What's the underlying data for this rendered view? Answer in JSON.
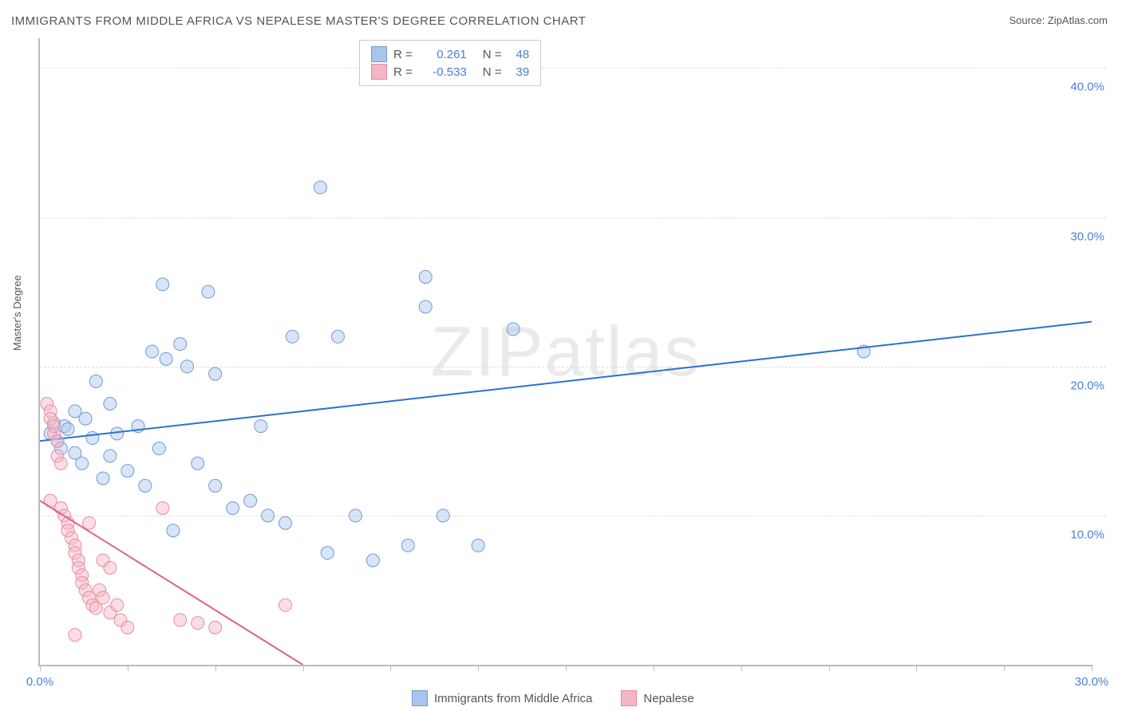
{
  "title": "IMMIGRANTS FROM MIDDLE AFRICA VS NEPALESE MASTER'S DEGREE CORRELATION CHART",
  "source_label": "Source: ",
  "source_name": "ZipAtlas.com",
  "y_axis_title": "Master's Degree",
  "watermark": "ZIPatlas",
  "chart": {
    "type": "scatter",
    "background_color": "#ffffff",
    "grid_color": "#dddddd",
    "axis_color": "#bbbbbb",
    "tick_label_color": "#4a7fd8",
    "xlim": [
      0,
      30
    ],
    "ylim": [
      0,
      42
    ],
    "x_ticks": [
      0,
      2.5,
      5,
      7.5,
      10,
      12.5,
      15,
      17.5,
      20,
      22.5,
      25,
      27.5,
      30
    ],
    "x_tick_labels": {
      "0": "0.0%",
      "30": "30.0%"
    },
    "y_gridlines": [
      10,
      20,
      30,
      40
    ],
    "y_tick_labels": {
      "10": "10.0%",
      "20": "20.0%",
      "30": "30.0%",
      "40": "40.0%"
    },
    "marker_radius": 8,
    "marker_opacity": 0.45,
    "line_width": 2,
    "series": [
      {
        "name": "Immigrants from Middle Africa",
        "color_fill": "#a8c6ec",
        "color_stroke": "#6f9ad6",
        "line_color": "#2f6fd0",
        "r_value": "0.261",
        "n_value": "48",
        "regression": {
          "x1": 0,
          "y1": 15.0,
          "x2": 30,
          "y2": 23.0
        },
        "points": [
          [
            0.3,
            15.5
          ],
          [
            0.4,
            16.2
          ],
          [
            0.5,
            15.0
          ],
          [
            0.6,
            14.5
          ],
          [
            0.7,
            16.0
          ],
          [
            0.8,
            15.8
          ],
          [
            1.0,
            14.2
          ],
          [
            1.0,
            17.0
          ],
          [
            1.2,
            13.5
          ],
          [
            1.3,
            16.5
          ],
          [
            1.5,
            15.2
          ],
          [
            1.6,
            19.0
          ],
          [
            1.8,
            12.5
          ],
          [
            2.0,
            14.0
          ],
          [
            2.0,
            17.5
          ],
          [
            2.2,
            15.5
          ],
          [
            2.5,
            13.0
          ],
          [
            2.8,
            16.0
          ],
          [
            3.0,
            12.0
          ],
          [
            3.2,
            21.0
          ],
          [
            3.4,
            14.5
          ],
          [
            3.6,
            20.5
          ],
          [
            3.8,
            9.0
          ],
          [
            4.0,
            21.5
          ],
          [
            4.2,
            20.0
          ],
          [
            3.5,
            25.5
          ],
          [
            4.5,
            13.5
          ],
          [
            5.0,
            19.5
          ],
          [
            5.0,
            12.0
          ],
          [
            5.5,
            10.5
          ],
          [
            6.0,
            11.0
          ],
          [
            6.5,
            10.0
          ],
          [
            6.3,
            16.0
          ],
          [
            7.0,
            9.5
          ],
          [
            7.2,
            22.0
          ],
          [
            8.0,
            32.0
          ],
          [
            8.2,
            7.5
          ],
          [
            8.5,
            22.0
          ],
          [
            9.0,
            10.0
          ],
          [
            9.5,
            7.0
          ],
          [
            10.5,
            8.0
          ],
          [
            11.0,
            24.0
          ],
          [
            11.5,
            10.0
          ],
          [
            11.0,
            26.0
          ],
          [
            12.5,
            8.0
          ],
          [
            13.5,
            22.5
          ],
          [
            23.5,
            21.0
          ],
          [
            4.8,
            25.0
          ]
        ]
      },
      {
        "name": "Nepalese",
        "color_fill": "#f6b5c4",
        "color_stroke": "#e88aa3",
        "line_color": "#e06088",
        "r_value": "-0.533",
        "n_value": "39",
        "regression": {
          "x1": 0,
          "y1": 11.0,
          "x2": 7.5,
          "y2": 0.0
        },
        "points": [
          [
            0.2,
            17.5
          ],
          [
            0.3,
            17.0
          ],
          [
            0.3,
            16.5
          ],
          [
            0.4,
            15.5
          ],
          [
            0.4,
            16.0
          ],
          [
            0.5,
            15.0
          ],
          [
            0.5,
            14.0
          ],
          [
            0.6,
            13.5
          ],
          [
            0.3,
            11.0
          ],
          [
            0.6,
            10.5
          ],
          [
            0.7,
            10.0
          ],
          [
            0.8,
            9.5
          ],
          [
            0.8,
            9.0
          ],
          [
            0.9,
            8.5
          ],
          [
            1.0,
            8.0
          ],
          [
            1.0,
            7.5
          ],
          [
            1.1,
            7.0
          ],
          [
            1.1,
            6.5
          ],
          [
            1.2,
            6.0
          ],
          [
            1.2,
            5.5
          ],
          [
            1.3,
            5.0
          ],
          [
            1.4,
            9.5
          ],
          [
            1.4,
            4.5
          ],
          [
            1.5,
            4.0
          ],
          [
            1.6,
            3.8
          ],
          [
            1.7,
            5.0
          ],
          [
            1.8,
            4.5
          ],
          [
            1.8,
            7.0
          ],
          [
            2.0,
            6.5
          ],
          [
            2.0,
            3.5
          ],
          [
            2.2,
            4.0
          ],
          [
            2.3,
            3.0
          ],
          [
            2.5,
            2.5
          ],
          [
            3.5,
            10.5
          ],
          [
            4.0,
            3.0
          ],
          [
            4.5,
            2.8
          ],
          [
            5.0,
            2.5
          ],
          [
            7.0,
            4.0
          ],
          [
            1.0,
            2.0
          ]
        ]
      }
    ]
  },
  "legend_top": {
    "r_label": "R =",
    "n_label": "N ="
  },
  "legend_bottom": {
    "series1": "Immigrants from Middle Africa",
    "series2": "Nepalese"
  }
}
